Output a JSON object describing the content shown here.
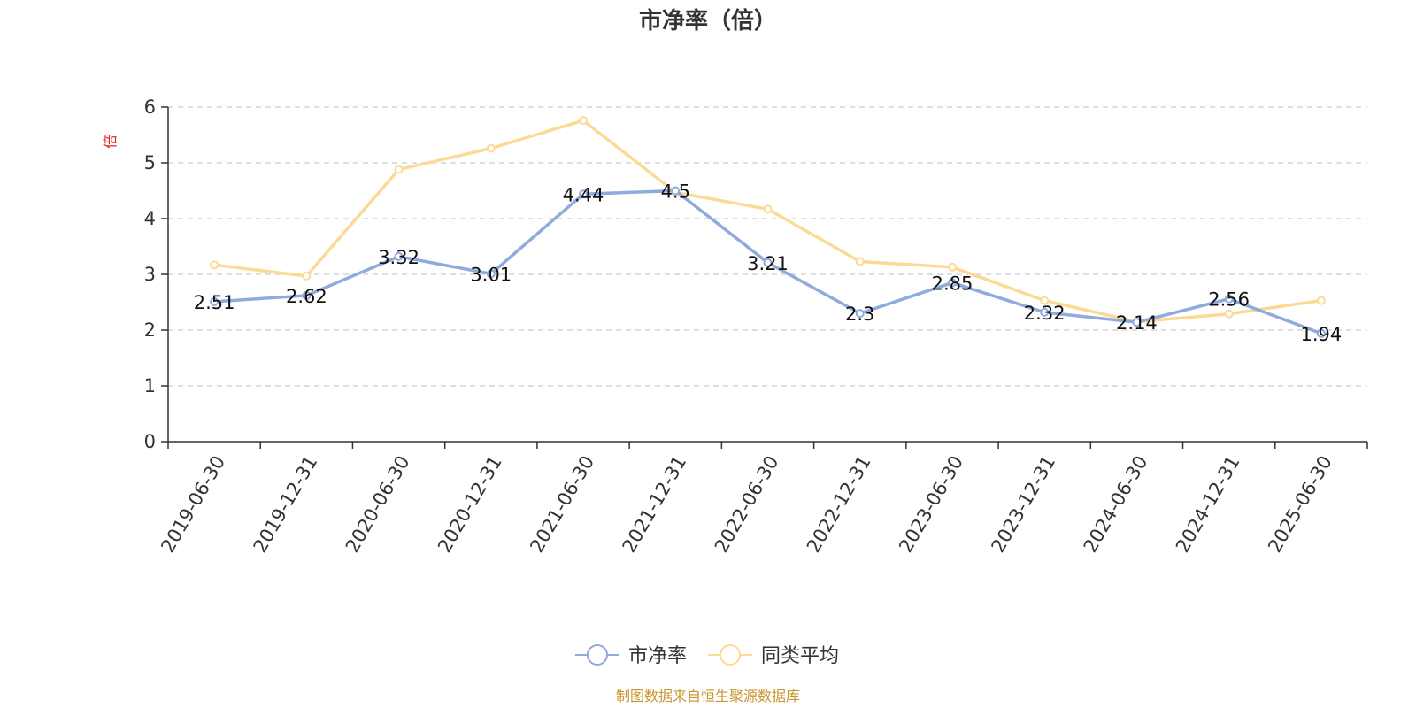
{
  "chart_data": {
    "type": "line",
    "title": "市净率（倍）",
    "ylabel": "倍",
    "xlabel": "",
    "categories": [
      "2019-06-30",
      "2019-12-31",
      "2020-06-30",
      "2020-12-31",
      "2021-06-30",
      "2021-12-31",
      "2022-06-30",
      "2022-12-31",
      "2023-06-30",
      "2023-12-31",
      "2024-06-30",
      "2024-12-31",
      "2025-06-30"
    ],
    "ylim": [
      0,
      6
    ],
    "yticks": [
      0,
      1,
      2,
      3,
      4,
      5,
      6
    ],
    "grid": true,
    "legend_position": "bottom",
    "series": [
      {
        "name": "市净率",
        "color": "#8FAADC",
        "values": [
          2.51,
          2.62,
          3.32,
          3.01,
          4.44,
          4.5,
          3.21,
          2.3,
          2.85,
          2.32,
          2.14,
          2.56,
          1.94
        ],
        "data_labels": [
          "2.51",
          "2.62",
          "3.32",
          "3.01",
          "4.44",
          "4.5",
          "3.21",
          "2.3",
          "2.85",
          "2.32",
          "2.14",
          "2.56",
          "1.94"
        ]
      },
      {
        "name": "同类平均",
        "color": "#FCD995",
        "values": [
          3.17,
          2.97,
          4.88,
          5.26,
          5.76,
          4.47,
          4.17,
          3.23,
          3.13,
          2.53,
          2.15,
          2.29,
          2.53
        ]
      }
    ],
    "source_note": "制图数据来自恒生聚源数据库",
    "source_note_color": "#C8962E",
    "unit_color": "#E02020"
  }
}
